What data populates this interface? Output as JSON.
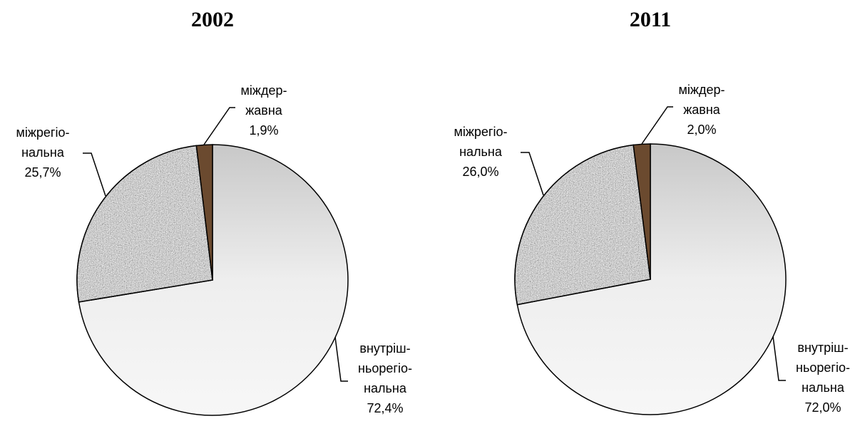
{
  "chart_data": [
    {
      "type": "pie",
      "title": "2002",
      "categories": [
        [
          "внутріш-",
          "ньорегіо-",
          "нальна"
        ],
        [
          "міжрегіо-",
          "нальна"
        ],
        [
          "міждер-",
          "жавна"
        ]
      ],
      "values": [
        72.4,
        25.7,
        1.9
      ],
      "value_labels": [
        "72,4%",
        "25,7%",
        "1,9%"
      ],
      "colors": [
        "#e4e4e4",
        "#9a9a9a",
        "#6b4a2f"
      ]
    },
    {
      "type": "pie",
      "title": "2011",
      "categories": [
        [
          "внутріш-",
          "ньорегіо-",
          "нальна"
        ],
        [
          "міжрегіо-",
          "нальна"
        ],
        [
          "міждер-",
          "жавна"
        ]
      ],
      "values": [
        72.0,
        26.0,
        2.0
      ],
      "value_labels": [
        "72,0%",
        "26,0%",
        "2,0%"
      ],
      "colors": [
        "#e4e4e4",
        "#9a9a9a",
        "#6b4a2f"
      ]
    }
  ]
}
